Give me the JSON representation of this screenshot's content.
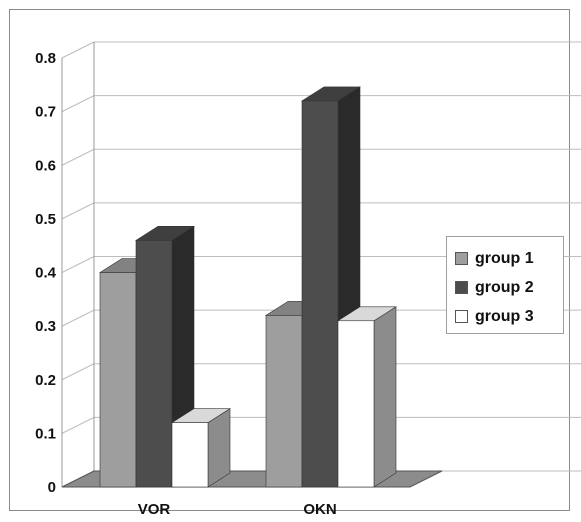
{
  "chart_data": {
    "type": "bar",
    "categories": [
      "VOR",
      "OKN"
    ],
    "series": [
      {
        "name": "group 1",
        "values": [
          0.4,
          0.32
        ],
        "color": "#9e9e9e"
      },
      {
        "name": "group 2",
        "values": [
          0.46,
          0.72
        ],
        "color": "#4d4d4d"
      },
      {
        "name": "group 3",
        "values": [
          0.12,
          0.31
        ],
        "color": "#ffffff"
      }
    ],
    "yticks": [
      "0",
      "0.1",
      "0.2",
      "0.3",
      "0.4",
      "0.5",
      "0.6",
      "0.7",
      "0.8"
    ],
    "ylim": [
      0,
      0.8
    ],
    "grid": true,
    "legend_position": "right",
    "title": "",
    "xlabel": "",
    "ylabel": ""
  }
}
